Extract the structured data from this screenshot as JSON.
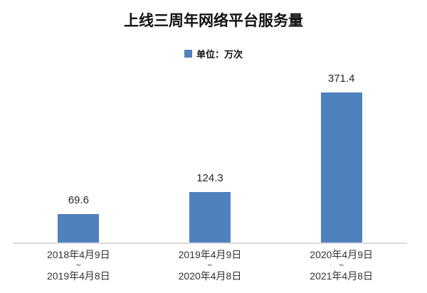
{
  "chart_data": {
    "type": "bar",
    "title": "上线三周年网络平台服务量",
    "legend": {
      "label": "单位：万次",
      "position": "top",
      "swatch_color": "#4F81BD"
    },
    "categories": [
      "2018年4月9日~2019年4月8日",
      "2019年4月9日~2020年4月8日",
      "2020年4月9日~2021年4月8日"
    ],
    "values": [
      69.6,
      124.3,
      371.4
    ],
    "ylim": [
      0,
      380
    ],
    "grid": false,
    "value_labels_shown": true,
    "bar_color": "#4F81BD",
    "axis_line_color": "#DBDBDB",
    "xlabel": "",
    "ylabel": ""
  },
  "bars": [
    {
      "value_label": "69.6",
      "period_start": "2018年4月9日",
      "separator": "~",
      "period_end": "2019年4月8日"
    },
    {
      "value_label": "124.3",
      "period_start": "2019年4月9日",
      "separator": "~",
      "period_end": "2020年4月8日"
    },
    {
      "value_label": "371.4",
      "period_start": "2020年4月9日",
      "separator": "~",
      "period_end": "2021年4月8日"
    }
  ]
}
